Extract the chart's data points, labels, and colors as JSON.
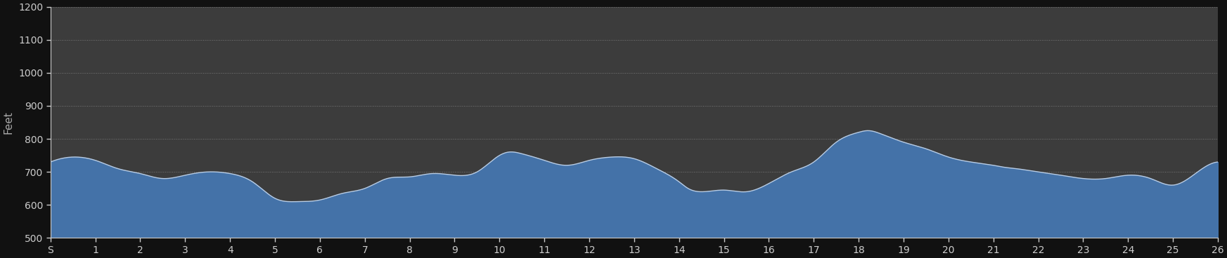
{
  "ylabel": "Feet",
  "xlim": [
    0,
    26
  ],
  "ylim": [
    500,
    1200
  ],
  "yticks": [
    500,
    600,
    700,
    800,
    900,
    1000,
    1100,
    1200
  ],
  "ytick_labels": [
    "500",
    "600",
    "700",
    "800",
    "900",
    "1000",
    "1100",
    "1200"
  ],
  "xtick_labels": [
    "S",
    "1",
    "2",
    "3",
    "4",
    "5",
    "6",
    "7",
    "8",
    "9",
    "10",
    "11",
    "12",
    "13",
    "14",
    "15",
    "16",
    "17",
    "18",
    "19",
    "20",
    "21",
    "22",
    "23",
    "24",
    "25",
    "26"
  ],
  "xtick_positions": [
    0,
    1,
    2,
    3,
    4,
    5,
    6,
    7,
    8,
    9,
    10,
    11,
    12,
    13,
    14,
    15,
    16,
    17,
    18,
    19,
    20,
    21,
    22,
    23,
    24,
    25,
    26
  ],
  "fill_color": "#4472a8",
  "line_color": "#b8cce4",
  "bg_color": "#111111",
  "plot_bg_color": "#3c3c3c",
  "grid_color": "#787878",
  "text_color": "#cccccc",
  "ylabel_color": "#aaaaaa",
  "elevation_miles": [
    0,
    0.5,
    1,
    1.5,
    2,
    2.5,
    3,
    3.5,
    4,
    4.5,
    5,
    5.5,
    6,
    6.5,
    7,
    7.5,
    8,
    8.5,
    9,
    9.5,
    10,
    10.2,
    10.5,
    11,
    11.5,
    12,
    12.5,
    13,
    13.5,
    14,
    14.2,
    14.5,
    15,
    15.5,
    16,
    16.5,
    17,
    17.5,
    18,
    18.2,
    18.5,
    19,
    19.5,
    20,
    20.5,
    21,
    21.2,
    21.5,
    22,
    22.5,
    23,
    23.5,
    24,
    24.5,
    25,
    25.5,
    26
  ],
  "elevation_values": [
    730,
    745,
    735,
    710,
    695,
    680,
    690,
    700,
    695,
    670,
    620,
    610,
    615,
    635,
    650,
    680,
    685,
    695,
    690,
    700,
    750,
    760,
    755,
    735,
    720,
    735,
    745,
    740,
    710,
    670,
    650,
    640,
    645,
    640,
    665,
    700,
    730,
    790,
    820,
    825,
    815,
    790,
    770,
    745,
    730,
    720,
    715,
    710,
    700,
    690,
    680,
    680,
    690,
    680,
    660,
    695,
    730
  ],
  "gradient_top_color": "#5b8ec2",
  "gradient_bot_color": "#2a5080"
}
